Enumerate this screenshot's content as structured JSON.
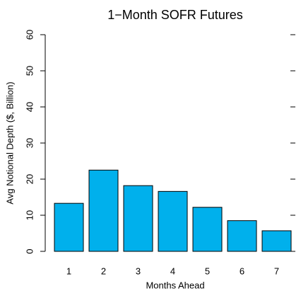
{
  "chart_data": {
    "type": "bar",
    "title": "1−Month SOFR Futures",
    "y_label": "Avg Notional Depth ($, Billion)",
    "x_label": "Months Ahead",
    "categories": [
      "1",
      "2",
      "3",
      "4",
      "5",
      "6",
      "7"
    ],
    "values": [
      13.3,
      22.5,
      18.2,
      16.6,
      12.2,
      8.5,
      5.7
    ],
    "color": "#00b0ec",
    "ylim": [
      0,
      60
    ],
    "yticks": [
      0,
      10,
      20,
      30,
      40,
      50,
      60
    ],
    "grid": false
  }
}
